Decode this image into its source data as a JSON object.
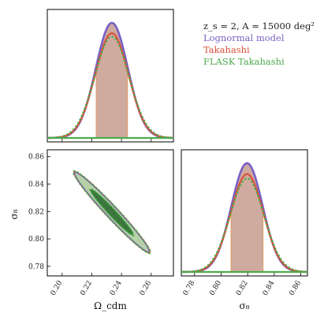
{
  "chart_data": [
    {
      "type": "line",
      "panel": "Omega_cdm marginal",
      "x_range": [
        0.19,
        0.275
      ],
      "shaded_interval": [
        0.223,
        0.244
      ],
      "series": [
        {
          "name": "Lognormal model",
          "color": "#7a5fc4",
          "mean": 0.2335,
          "sigma": 0.0108,
          "peak": 1.0
        },
        {
          "name": "Takahashi",
          "color": "#d9513b",
          "mean": 0.2335,
          "sigma": 0.0112,
          "peak": 0.91
        },
        {
          "name": "FLASK Takahashi",
          "color": "#4caa4c",
          "mean": 0.2335,
          "sigma": 0.0116,
          "peak": 0.88
        }
      ]
    },
    {
      "type": "scatter",
      "panel": "Omega_cdm vs sigma_8 contours",
      "xlabel": "Ω_cdm",
      "ylabel": "σ₈",
      "xlim": [
        0.19,
        0.275
      ],
      "ylim": [
        0.773,
        0.865
      ],
      "x_ticks": [
        "0.20",
        "0.22",
        "0.24",
        "0.26"
      ],
      "y_ticks": [
        "0.78",
        "0.80",
        "0.82",
        "0.84",
        "0.86"
      ],
      "center": [
        0.2335,
        0.8195
      ],
      "contour_extent_x": [
        0.207,
        0.258
      ],
      "contour_extent_y": [
        0.79,
        0.849
      ]
    },
    {
      "type": "line",
      "panel": "sigma_8 marginal",
      "xlabel": "σ₈",
      "x_range": [
        0.77,
        0.865
      ],
      "x_ticks": [
        "0.78",
        "0.80",
        "0.82",
        "0.84",
        "0.86"
      ],
      "shaded_interval": [
        0.8075,
        0.8315
      ],
      "series": [
        {
          "name": "Lognormal model",
          "color": "#7a5fc4",
          "mean": 0.8195,
          "sigma": 0.0118,
          "peak": 1.0
        },
        {
          "name": "Takahashi",
          "color": "#d9513b",
          "mean": 0.8195,
          "sigma": 0.0123,
          "peak": 0.9
        },
        {
          "name": "FLASK Takahashi",
          "color": "#4caa4c",
          "mean": 0.8195,
          "sigma": 0.0128,
          "peak": 0.86
        }
      ]
    }
  ],
  "legend": {
    "title": "z_s = 2, A = 15000 deg²",
    "entries": [
      {
        "label": "Lognormal model",
        "color": "#7a5fc4"
      },
      {
        "label": "Takahashi",
        "color": "#d9513b"
      },
      {
        "label": "FLASK Takahashi",
        "color": "#4caa4c"
      }
    ]
  }
}
